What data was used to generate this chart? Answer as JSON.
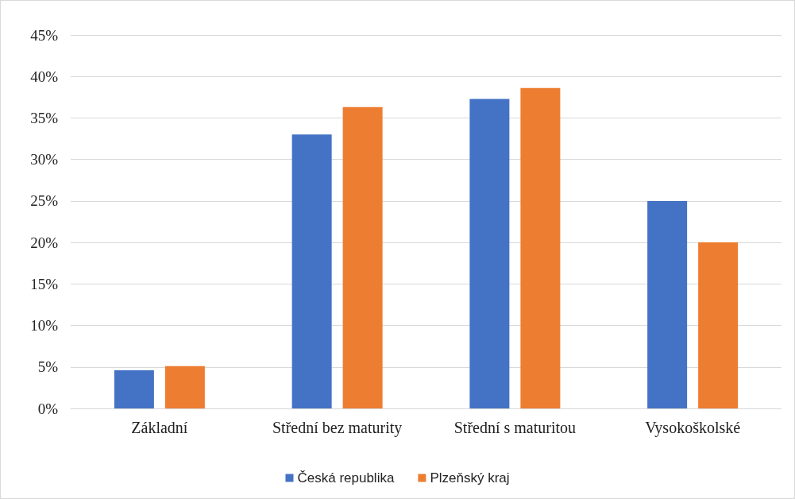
{
  "chart_data": {
    "type": "bar",
    "categories": [
      "Základní",
      "Střední bez maturity",
      "Střední s maturitou",
      "Vysokoškolské"
    ],
    "series": [
      {
        "name": "Česká republika",
        "color": "#4472c4",
        "values": [
          4.6,
          33.0,
          37.3,
          25.0
        ]
      },
      {
        "name": "Plzeňský kraj",
        "color": "#ed7d31",
        "values": [
          5.1,
          36.3,
          38.6,
          20.0
        ]
      }
    ],
    "ylim": [
      0,
      45
    ],
    "yticks": [
      {
        "value": 0,
        "label": "0%"
      },
      {
        "value": 5,
        "label": "5%"
      },
      {
        "value": 10,
        "label": "10%"
      },
      {
        "value": 15,
        "label": "15%"
      },
      {
        "value": 20,
        "label": "20%"
      },
      {
        "value": 25,
        "label": "25%"
      },
      {
        "value": 30,
        "label": "30%"
      },
      {
        "value": 35,
        "label": "35%"
      },
      {
        "value": 40,
        "label": "40%"
      },
      {
        "value": 45,
        "label": "45%"
      }
    ],
    "grid": "y",
    "legend": "bottom"
  }
}
